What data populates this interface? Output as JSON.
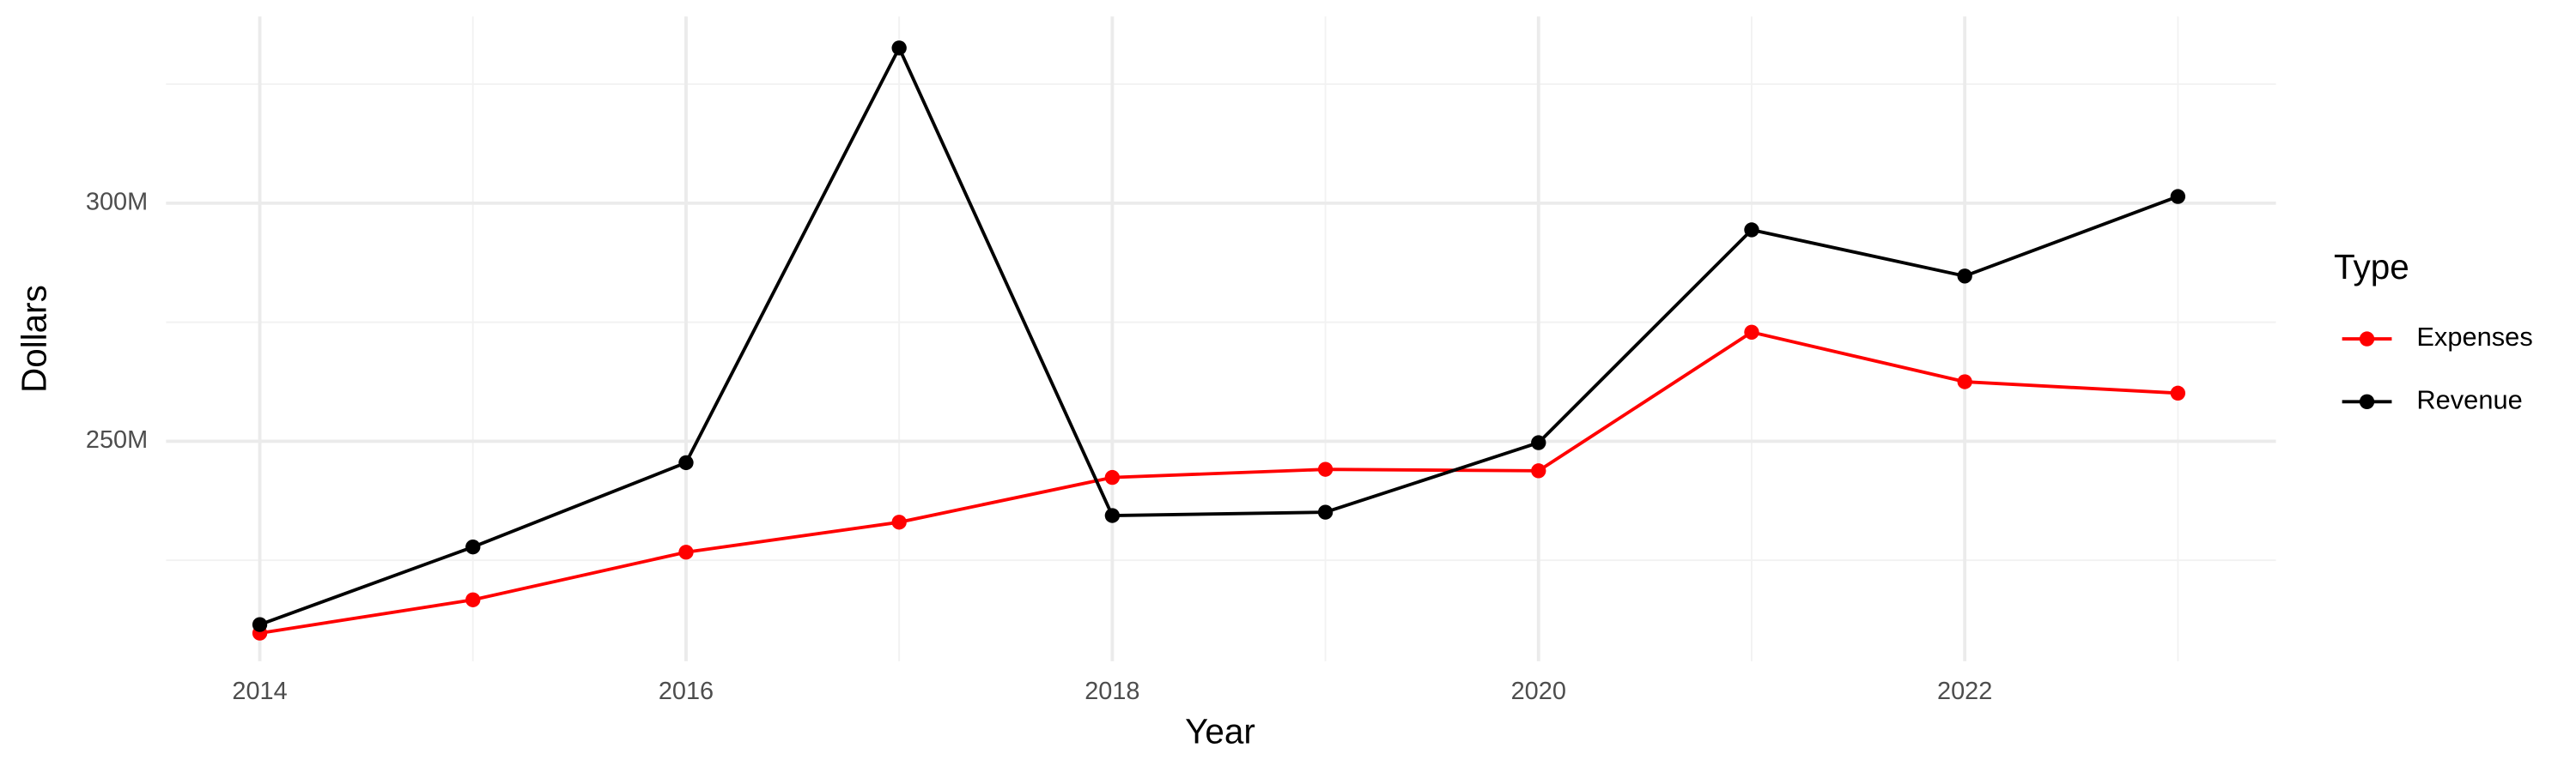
{
  "chart_data": {
    "type": "line",
    "x_label": "Year",
    "y_label": "Dollars",
    "legend_title": "Type",
    "legend": "right",
    "grid": true,
    "x": [
      2014,
      2015,
      2016,
      2017,
      2018,
      2019,
      2020,
      2021,
      2022,
      2023
    ],
    "series": [
      {
        "name": "Expenses",
        "color": "#ff0000",
        "values": [
          209700000,
          216700000,
          226700000,
          233000000,
          242400000,
          244100000,
          243800000,
          272900000,
          262500000,
          260100000
        ]
      },
      {
        "name": "Revenue",
        "color": "#000000",
        "values": [
          211500000,
          227800000,
          245500000,
          332600000,
          234400000,
          235100000,
          249700000,
          294400000,
          284700000,
          301400000
        ]
      }
    ],
    "xlim": [
      2013.56,
      2023.46
    ],
    "xticks": [
      2014,
      2016,
      2018,
      2020,
      2022
    ],
    "x_minor_ticks": [
      2015,
      2017,
      2019,
      2021,
      2023
    ],
    "ylim": [
      203800000,
      339200000
    ],
    "yticks": [
      {
        "value": 250000000,
        "label": "250M"
      },
      {
        "value": 300000000,
        "label": "300M"
      }
    ],
    "y_minor_ticks": [
      225000000,
      275000000,
      325000000
    ]
  }
}
